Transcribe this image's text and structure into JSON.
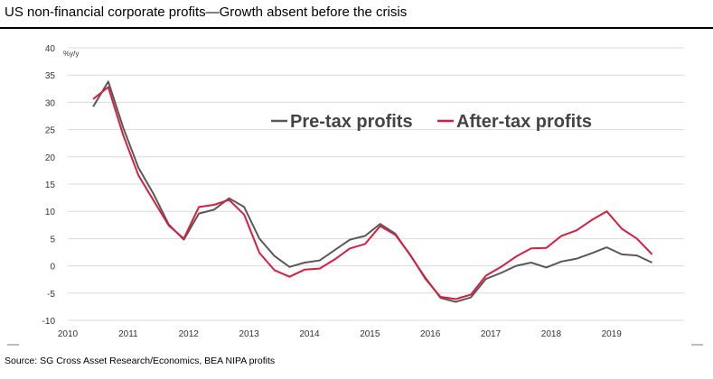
{
  "title": "US non-financial corporate profits—Growth absent before the crisis",
  "source": "Source: SG Cross Asset Research/Economics, BEA NIPA profits",
  "chart_data": {
    "type": "line",
    "unit_label": "%y/y",
    "xlim": [
      2010,
      2020.2
    ],
    "ylim": [
      -10,
      40
    ],
    "x_ticks": [
      2010,
      2011,
      2012,
      2013,
      2014,
      2015,
      2016,
      2017,
      2018,
      2019
    ],
    "x_tick_labels": [
      "2010",
      "2011",
      "2012",
      "2013",
      "2014",
      "2015",
      "2016",
      "2017",
      "2018",
      "2019"
    ],
    "y_ticks": [
      40,
      35,
      30,
      25,
      20,
      15,
      10,
      5,
      0,
      -5,
      -10
    ],
    "y_tick_labels": [
      "40",
      "35",
      "30",
      "25",
      "20",
      "15",
      "10",
      "5",
      "0",
      "-5",
      "-10"
    ],
    "grid": "horizontal",
    "series": [
      {
        "name": "Pre-tax profits",
        "color": "#595959",
        "points": [
          [
            2010.42,
            29.2
          ],
          [
            2010.67,
            33.8
          ],
          [
            2010.92,
            25.3
          ],
          [
            2011.17,
            18.0
          ],
          [
            2011.42,
            13.2
          ],
          [
            2011.67,
            7.6
          ],
          [
            2011.92,
            4.8
          ],
          [
            2012.17,
            9.6
          ],
          [
            2012.42,
            10.3
          ],
          [
            2012.67,
            12.4
          ],
          [
            2012.92,
            10.8
          ],
          [
            2013.17,
            5.0
          ],
          [
            2013.42,
            1.8
          ],
          [
            2013.67,
            -0.2
          ],
          [
            2013.92,
            0.6
          ],
          [
            2014.17,
            1.0
          ],
          [
            2014.42,
            2.9
          ],
          [
            2014.67,
            4.8
          ],
          [
            2014.92,
            5.5
          ],
          [
            2015.17,
            7.7
          ],
          [
            2015.42,
            5.9
          ],
          [
            2015.67,
            1.9
          ],
          [
            2015.92,
            -2.2
          ],
          [
            2016.17,
            -5.9
          ],
          [
            2016.42,
            -6.6
          ],
          [
            2016.67,
            -5.8
          ],
          [
            2016.92,
            -2.4
          ],
          [
            2017.17,
            -1.3
          ],
          [
            2017.42,
            0.0
          ],
          [
            2017.67,
            0.6
          ],
          [
            2017.92,
            -0.3
          ],
          [
            2018.17,
            0.8
          ],
          [
            2018.42,
            1.3
          ],
          [
            2018.67,
            2.3
          ],
          [
            2018.92,
            3.4
          ],
          [
            2019.17,
            2.1
          ],
          [
            2019.42,
            1.9
          ],
          [
            2019.67,
            0.6
          ]
        ]
      },
      {
        "name": "After-tax profits",
        "color": "#d81e3e",
        "points": [
          [
            2010.42,
            30.6
          ],
          [
            2010.67,
            32.8
          ],
          [
            2010.92,
            23.9
          ],
          [
            2011.17,
            16.6
          ],
          [
            2011.42,
            12.0
          ],
          [
            2011.67,
            7.4
          ],
          [
            2011.92,
            5.0
          ],
          [
            2012.17,
            10.8
          ],
          [
            2012.42,
            11.2
          ],
          [
            2012.67,
            12.1
          ],
          [
            2012.92,
            9.4
          ],
          [
            2013.17,
            2.4
          ],
          [
            2013.42,
            -0.8
          ],
          [
            2013.67,
            -2.0
          ],
          [
            2013.92,
            -0.7
          ],
          [
            2014.17,
            -0.5
          ],
          [
            2014.42,
            1.2
          ],
          [
            2014.67,
            3.2
          ],
          [
            2014.92,
            4.0
          ],
          [
            2015.17,
            7.3
          ],
          [
            2015.42,
            5.7
          ],
          [
            2015.67,
            2.0
          ],
          [
            2015.92,
            -2.4
          ],
          [
            2016.17,
            -5.7
          ],
          [
            2016.42,
            -6.1
          ],
          [
            2016.67,
            -5.3
          ],
          [
            2016.92,
            -1.8
          ],
          [
            2017.17,
            -0.2
          ],
          [
            2017.42,
            1.7
          ],
          [
            2017.67,
            3.2
          ],
          [
            2017.92,
            3.3
          ],
          [
            2018.17,
            5.5
          ],
          [
            2018.42,
            6.5
          ],
          [
            2018.67,
            8.4
          ],
          [
            2018.92,
            10.0
          ],
          [
            2019.17,
            6.8
          ],
          [
            2019.42,
            5.0
          ],
          [
            2019.67,
            2.1
          ]
        ]
      }
    ],
    "legend": [
      "Pre-tax profits",
      "After-tax profits"
    ],
    "legend_placement": "top-center"
  }
}
